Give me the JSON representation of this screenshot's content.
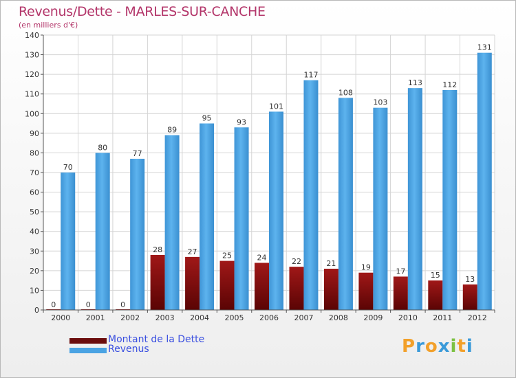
{
  "header": {
    "title": "Revenus/Dette - MARLES-SUR-CANCHE",
    "subtitle": "(en milliers d'€)"
  },
  "chart_data": {
    "type": "bar",
    "categories": [
      "2000",
      "2001",
      "2002",
      "2003",
      "2004",
      "2005",
      "2006",
      "2007",
      "2008",
      "2009",
      "2010",
      "2011",
      "2012"
    ],
    "series": [
      {
        "name": "Montant de la Dette",
        "color": "#7a0a0a",
        "values": [
          0,
          0,
          0,
          28,
          27,
          25,
          24,
          22,
          21,
          19,
          17,
          15,
          13
        ]
      },
      {
        "name": "Revenus",
        "color": "#4aa3e3",
        "values": [
          70,
          80,
          77,
          89,
          95,
          93,
          101,
          117,
          108,
          103,
          113,
          112,
          131
        ]
      }
    ],
    "ylim": [
      0,
      140
    ],
    "yticks": [
      0,
      10,
      20,
      30,
      40,
      50,
      60,
      70,
      80,
      90,
      100,
      110,
      120,
      130,
      140
    ],
    "grid": true,
    "legend_position": "bottom-left"
  },
  "legend": {
    "items": [
      {
        "label": "Montant de la Dette",
        "color": "#6b0c0c"
      },
      {
        "label": "Revenus",
        "color": "#4aa3e3"
      }
    ]
  },
  "logo": {
    "text": "Proxiti",
    "colors": [
      "#f2a02a",
      "#3a9ad9",
      "#f2a02a",
      "#3a9ad9",
      "#7cc142",
      "#f2a02a",
      "#3a9ad9"
    ]
  }
}
